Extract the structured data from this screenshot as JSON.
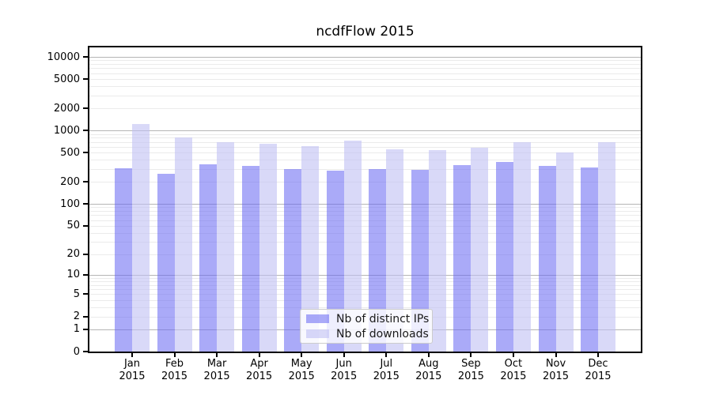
{
  "chart_data": {
    "type": "bar",
    "title": "ncdfFlow 2015",
    "months": [
      "Jan",
      "Feb",
      "Mar",
      "Apr",
      "May",
      "Jun",
      "Jul",
      "Aug",
      "Sep",
      "Oct",
      "Nov",
      "Dec"
    ],
    "year": "2015",
    "categories": [
      "Jan 2015",
      "Feb 2015",
      "Mar 2015",
      "Apr 2015",
      "May 2015",
      "Jun 2015",
      "Jul 2015",
      "Aug 2015",
      "Sep 2015",
      "Oct 2015",
      "Nov 2015",
      "Dec 2015"
    ],
    "series": [
      {
        "name": "Nb of distinct IPs",
        "color": "#aaaaf8",
        "fill": "rgba(100,100,242,0.55)",
        "values": [
          310,
          260,
          347,
          333,
          300,
          285,
          301,
          290,
          336,
          377,
          334,
          315
        ]
      },
      {
        "name": "Nb of downloads",
        "color": "#d9d9f8",
        "fill": "rgba(192,192,243,0.60)",
        "values": [
          1230,
          800,
          695,
          660,
          614,
          730,
          560,
          542,
          584,
          690,
          508,
          690
        ]
      }
    ],
    "yscale": "log1p",
    "yticks": [
      10000,
      5000,
      2000,
      1000,
      500,
      200,
      100,
      50,
      20,
      10,
      5,
      2,
      1,
      0
    ],
    "major_grid_values": [
      1,
      10,
      100,
      1000,
      10000
    ],
    "ylim": [
      0,
      13400
    ],
    "xlabel": "",
    "ylabel": "",
    "grid": true,
    "legend_position": "lower-center-inside",
    "colors": {
      "spine": "#000000",
      "major_grid": "#b5b5b5",
      "minor_grid": "#ebebeb",
      "background": "#ffffff"
    }
  }
}
